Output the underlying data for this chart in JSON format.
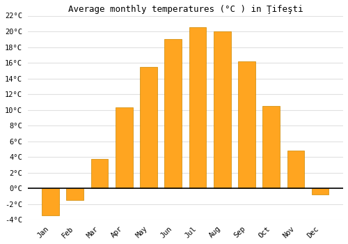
{
  "months": [
    "Jan",
    "Feb",
    "Mar",
    "Apr",
    "May",
    "Jun",
    "Jul",
    "Aug",
    "Sep",
    "Oct",
    "Nov",
    "Dec"
  ],
  "values": [
    -3.5,
    -1.5,
    3.7,
    10.3,
    15.5,
    19.0,
    20.5,
    20.0,
    16.2,
    10.5,
    4.8,
    -0.8
  ],
  "bar_color": "#FFA520",
  "bar_edge_color": "#CC8800",
  "title": "Average monthly temperatures (°C ) in Ţifeşti",
  "ylim": [
    -4,
    22
  ],
  "yticks": [
    -4,
    -2,
    0,
    2,
    4,
    6,
    8,
    10,
    12,
    14,
    16,
    18,
    20,
    22
  ],
  "background_color": "#ffffff",
  "plot_bg_color": "#f0f0f0",
  "grid_color": "#e0e0e0",
  "title_fontsize": 9,
  "tick_fontsize": 7.5,
  "bar_width": 0.7
}
